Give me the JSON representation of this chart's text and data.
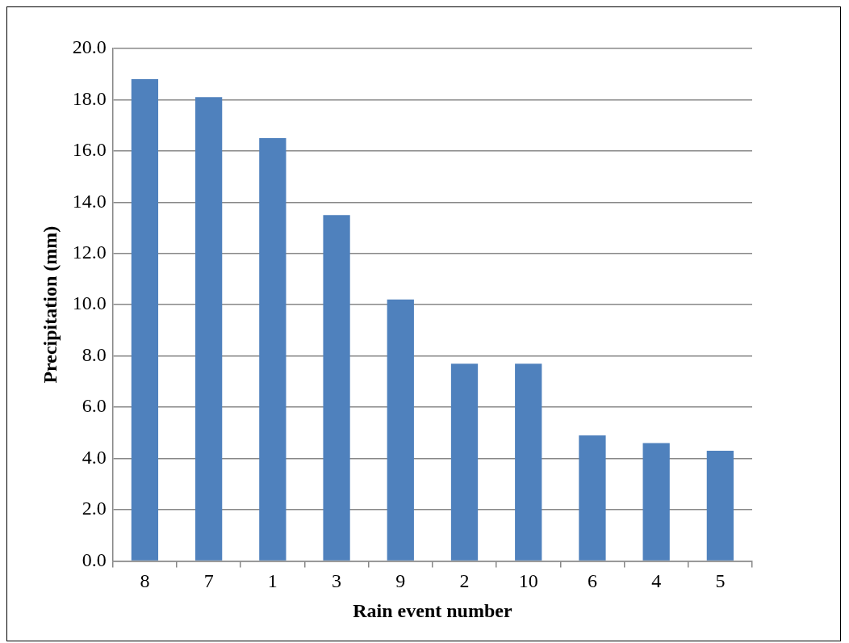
{
  "chart_data": {
    "type": "bar",
    "xlabel": "Rain event number",
    "ylabel": "Precipitation (mm)",
    "categories": [
      "8",
      "7",
      "1",
      "3",
      "9",
      "2",
      "10",
      "6",
      "4",
      "5"
    ],
    "values": [
      18.8,
      18.1,
      16.5,
      13.5,
      10.2,
      7.7,
      7.7,
      4.9,
      4.6,
      4.3
    ],
    "color": "#4f81bd",
    "ylim": [
      0,
      20
    ],
    "yticks": [
      {
        "value": 0,
        "label": "0.0"
      },
      {
        "value": 2,
        "label": "2.0"
      },
      {
        "value": 4,
        "label": "4.0"
      },
      {
        "value": 6,
        "label": "6.0"
      },
      {
        "value": 8,
        "label": "8.0"
      },
      {
        "value": 10,
        "label": "10.0"
      },
      {
        "value": 12,
        "label": "12.0"
      },
      {
        "value": 14,
        "label": "14.0"
      },
      {
        "value": 16,
        "label": "16.0"
      },
      {
        "value": 18,
        "label": "18.0"
      },
      {
        "value": 20,
        "label": "20.0"
      }
    ],
    "grid": "y"
  }
}
